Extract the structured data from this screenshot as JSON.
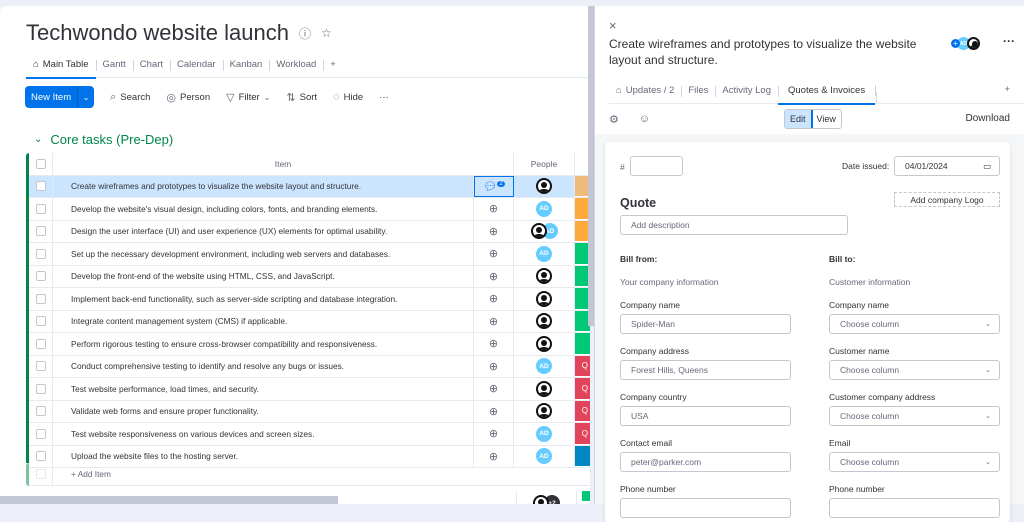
{
  "board": {
    "title": "Techwondo website launch",
    "tabs": [
      {
        "label": "Main Table",
        "active": true
      },
      {
        "label": "Gantt"
      },
      {
        "label": "Chart"
      },
      {
        "label": "Calendar"
      },
      {
        "label": "Kanban"
      },
      {
        "label": "Workload"
      },
      {
        "label": "+"
      }
    ],
    "toolbar": {
      "new_item": "New Item",
      "search": "Search",
      "person": "Person",
      "filter": "Filter",
      "sort": "Sort",
      "hide": "Hide",
      "more": "···"
    },
    "group": {
      "title": "Core tasks (Pre-Dep)",
      "color": "#00854d",
      "columns": {
        "item": "Item",
        "people": "People"
      },
      "rows": [
        {
          "item": "Create wireframes and prototypes to visualize the website layout and structure.",
          "people": [
            "user"
          ],
          "status_color": "#eebc7a",
          "status_text": "",
          "updates": 2,
          "selected": true
        },
        {
          "item": "Develop the website's visual design, including colors, fonts, and branding elements.",
          "people": [
            "AD"
          ],
          "status_color": "#fdab3d",
          "status_text": ""
        },
        {
          "item": "Design the user interface (UI) and user experience (UX) elements for optimal usability.",
          "people": [
            "user",
            "AD"
          ],
          "status_color": "#fdab3d",
          "status_text": ""
        },
        {
          "item": "Set up the necessary development environment, including web servers and databases.",
          "people": [
            "AD"
          ],
          "status_color": "#00c875",
          "status_text": ""
        },
        {
          "item": "Develop the front-end of the website using HTML, CSS, and JavaScript.",
          "people": [
            "user"
          ],
          "status_color": "#00c875",
          "status_text": ""
        },
        {
          "item": "Implement back-end functionality, such as server-side scripting and database integration.",
          "people": [
            "user"
          ],
          "status_color": "#00c875",
          "status_text": ""
        },
        {
          "item": "Integrate content management system (CMS) if applicable.",
          "people": [
            "user"
          ],
          "status_color": "#00c875",
          "status_text": ""
        },
        {
          "item": "Perform rigorous testing to ensure cross-browser compatibility and responsiveness.",
          "people": [
            "user"
          ],
          "status_color": "#00c875",
          "status_text": ""
        },
        {
          "item": "Conduct comprehensive testing to identify and resolve any bugs or issues.",
          "people": [
            "AD"
          ],
          "status_color": "#e2445c",
          "status_text": "Q"
        },
        {
          "item": "Test website performance, load times, and security.",
          "people": [
            "user"
          ],
          "status_color": "#e2445c",
          "status_text": "Q"
        },
        {
          "item": "Validate web forms and ensure proper functionality.",
          "people": [
            "user"
          ],
          "status_color": "#e2445c",
          "status_text": "Q"
        },
        {
          "item": "Test website responsiveness on various devices and screen sizes.",
          "people": [
            "AD"
          ],
          "status_color": "#e2445c",
          "status_text": "Q"
        },
        {
          "item": "Upload the website files to the hosting server.",
          "people": [
            "AD"
          ],
          "status_color": "#0086c0",
          "status_text": ""
        }
      ],
      "add_item": "+ Add Item",
      "summary": {
        "people_extra": "+2",
        "status_color": "#00c875"
      }
    }
  },
  "panel": {
    "close": "×",
    "title": "Create wireframes and prototypes to visualize the website layout and structure.",
    "more": "···",
    "tabs": [
      {
        "label": "Updates / 2"
      },
      {
        "label": "Files"
      },
      {
        "label": "Activity Log"
      },
      {
        "label": "Quotes & Invoices",
        "active": true
      }
    ],
    "add_tab": "+",
    "edit": "Edit",
    "view": "View",
    "download": "Download",
    "form": {
      "hash": "#",
      "number_value": "",
      "date_label": "Date issued:",
      "date_value": "04/01/2024",
      "add_logo": "Add company Logo",
      "heading": "Quote",
      "description_placeholder": "Add description",
      "bill_from": {
        "title": "Bill from:",
        "subtitle": "Your company information",
        "fields": [
          {
            "label": "Company name",
            "value": "Spider-Man"
          },
          {
            "label": "Company address",
            "value": "Forest Hills, Queens"
          },
          {
            "label": "Company country",
            "value": "USA"
          },
          {
            "label": "Contact email",
            "value": "peter@parker.com"
          },
          {
            "label": "Phone number",
            "value": ""
          }
        ]
      },
      "bill_to": {
        "title": "Bill to:",
        "subtitle": "Customer information",
        "fields": [
          {
            "label": "Company name",
            "value": "Choose column"
          },
          {
            "label": "Customer name",
            "value": "Choose column"
          },
          {
            "label": "Customer company address",
            "value": "Choose column"
          },
          {
            "label": "Email",
            "value": "Choose column"
          },
          {
            "label": "Phone number",
            "value": ""
          }
        ]
      }
    }
  }
}
